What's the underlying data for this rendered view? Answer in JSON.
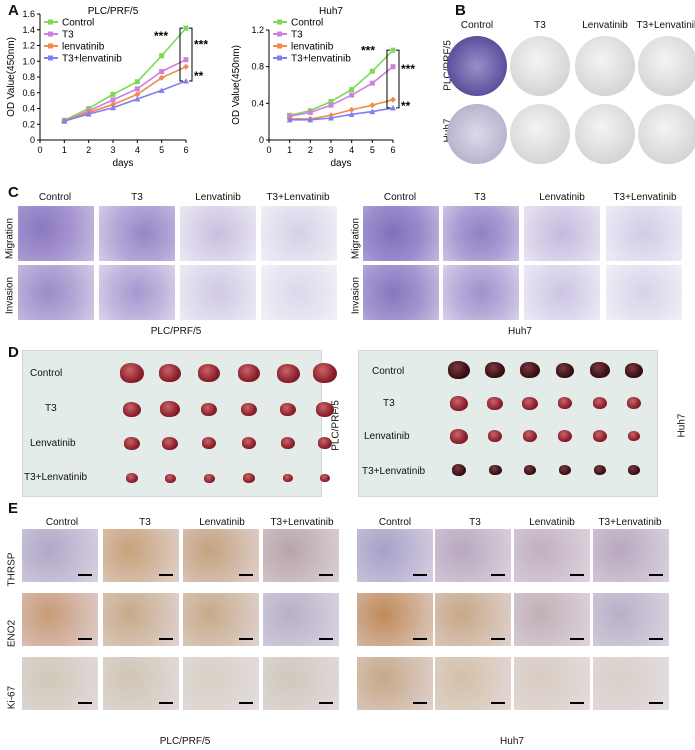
{
  "panels": {
    "a": "A",
    "b": "B",
    "c": "C",
    "d": "D",
    "e": "E"
  },
  "chart_data": [
    {
      "type": "line",
      "title": "PLC/PRF/5",
      "xlabel": "days",
      "ylabel": "OD Value(450nm)",
      "x": [
        1,
        2,
        3,
        4,
        5,
        6
      ],
      "xlim": [
        0,
        6
      ],
      "ylim": [
        0,
        1.6
      ],
      "yticks": [
        "0",
        "0.2",
        "0.4",
        "0.6",
        "0.8",
        "1.0",
        "1.2",
        "1.4",
        "1.6"
      ],
      "xticks": [
        "0",
        "1",
        "2",
        "3",
        "4",
        "5",
        "6"
      ],
      "series": [
        {
          "name": "Control",
          "color": "#7ed957",
          "values": [
            0.25,
            0.4,
            0.58,
            0.74,
            1.07,
            1.42
          ]
        },
        {
          "name": "T3",
          "color": "#cf7fe0",
          "values": [
            0.24,
            0.37,
            0.51,
            0.65,
            0.87,
            1.02
          ]
        },
        {
          "name": "lenvatinib",
          "color": "#f08c4c",
          "values": [
            0.24,
            0.35,
            0.45,
            0.58,
            0.79,
            0.93
          ]
        },
        {
          "name": "T3+lenvatinib",
          "color": "#7f7ff0",
          "values": [
            0.24,
            0.33,
            0.41,
            0.52,
            0.63,
            0.75
          ]
        }
      ],
      "annotations": [
        "***",
        "***",
        "**"
      ],
      "legend": "top-left"
    },
    {
      "type": "line",
      "title": "Huh7",
      "xlabel": "days",
      "ylabel": "OD Value(450nm)",
      "x": [
        1,
        2,
        3,
        4,
        5,
        6
      ],
      "xlim": [
        0,
        6
      ],
      "ylim": [
        0,
        1.2
      ],
      "yticks": [
        "0",
        "0.4",
        "0.8",
        "1.2"
      ],
      "xticks": [
        "0",
        "1",
        "2",
        "3",
        "4",
        "5",
        "6"
      ],
      "series": [
        {
          "name": "Control",
          "color": "#7ed957",
          "values": [
            0.27,
            0.32,
            0.42,
            0.55,
            0.75,
            0.98
          ]
        },
        {
          "name": "T3",
          "color": "#cf7fe0",
          "values": [
            0.26,
            0.3,
            0.38,
            0.49,
            0.62,
            0.8
          ]
        },
        {
          "name": "lenvatinib",
          "color": "#f08c4c",
          "values": [
            0.23,
            0.23,
            0.27,
            0.33,
            0.38,
            0.44
          ]
        },
        {
          "name": "T3+lenvatinib",
          "color": "#7f7ff0",
          "values": [
            0.22,
            0.22,
            0.24,
            0.28,
            0.31,
            0.35
          ]
        }
      ],
      "annotations": [
        "***",
        "***",
        "**"
      ],
      "legend": "top-left"
    }
  ],
  "colony": {
    "columns": [
      "Control",
      "T3",
      "Lenvatinib",
      "T3+Lenvatinib"
    ],
    "rows": [
      "PLC/PRF/5",
      "Huh7"
    ]
  },
  "transwell": {
    "left_columns": [
      "Control",
      "T3",
      "Lenvatinib",
      "T3+Lenvatinib"
    ],
    "right_columns": [
      "Control",
      "T3",
      "Lenvatinib",
      "T3+Lenvatinib"
    ],
    "rows": [
      "Migration",
      "Invasion"
    ],
    "left_label": "PLC/PRF/5",
    "right_label": "Huh7"
  },
  "tumors": {
    "rows": [
      "Control",
      "T3",
      "Lenvatinib",
      "T3+Lenvatinib"
    ],
    "left_label": "PLC/PRF/5",
    "right_label": "Huh7"
  },
  "ihc": {
    "left_columns": [
      "Control",
      "T3",
      "Lenvatinib",
      "T3+Lenvatinib"
    ],
    "right_columns": [
      "Control",
      "T3",
      "Lenvatinib",
      "T3+Lenvatinib"
    ],
    "rows": [
      "THRSP",
      "ENO2",
      "Ki-67"
    ],
    "left_label": "PLC/PRF/5",
    "right_label": "Huh7"
  }
}
